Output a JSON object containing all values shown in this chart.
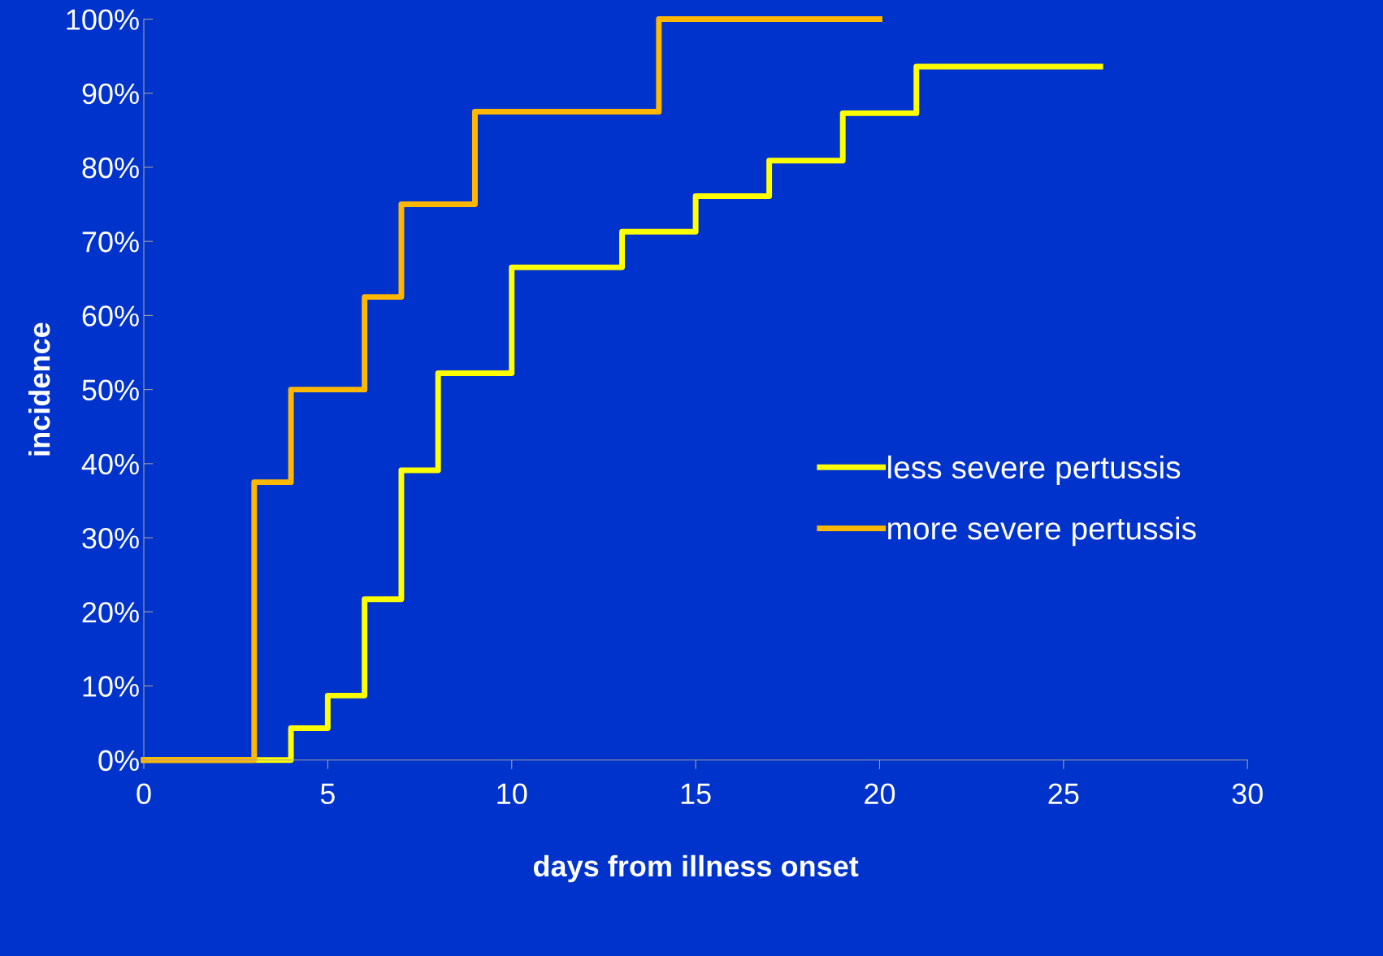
{
  "chart_data": {
    "type": "step",
    "xlabel": "days from illness onset",
    "ylabel": "incidence",
    "xlim": [
      0,
      30
    ],
    "xticks": [
      0,
      5,
      10,
      15,
      20,
      25,
      30
    ],
    "ylim": [
      0,
      100
    ],
    "yticks": [
      {
        "value": 0,
        "label": "0%"
      },
      {
        "value": 10,
        "label": "10%"
      },
      {
        "value": 20,
        "label": "20%"
      },
      {
        "value": 30,
        "label": "30%"
      },
      {
        "value": 40,
        "label": "40%"
      },
      {
        "value": 50,
        "label": "50%"
      },
      {
        "value": 60,
        "label": "60%"
      },
      {
        "value": 70,
        "label": "70%"
      },
      {
        "value": 80,
        "label": "80%"
      },
      {
        "value": 90,
        "label": "90%"
      },
      {
        "value": 100,
        "label": "100%"
      }
    ],
    "grid": false,
    "legend": "right",
    "marker": "none",
    "line_style": "solid",
    "series": [
      {
        "name": "less severe pertussis",
        "color": "#ffff00",
        "x": [
          0,
          4,
          5,
          6,
          7,
          8,
          10,
          13,
          15,
          17,
          19,
          21,
          26
        ],
        "values": [
          0,
          4.3,
          8.7,
          21.7,
          39.1,
          52.2,
          66.5,
          71.3,
          76.1,
          80.9,
          87.3,
          93.6,
          93.6
        ]
      },
      {
        "name": "more severe pertussis",
        "color": "#ffb700",
        "x": [
          0,
          3,
          4,
          6,
          7,
          9,
          14,
          20
        ],
        "values": [
          0,
          37.5,
          50,
          62.5,
          75,
          87.5,
          100,
          100
        ]
      }
    ]
  }
}
